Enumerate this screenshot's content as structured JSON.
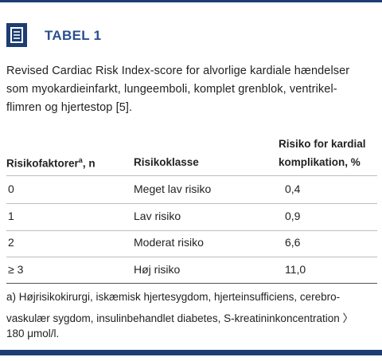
{
  "header": {
    "title": "TABEL 1"
  },
  "caption": [
    "Revised Cardiac Risk Index-score for alvorlige kardiale hændelser",
    "som myokardieinfarkt, lungeemboli, komplet grenblok, ventrikel-",
    "flimren og hjertestop [5]."
  ],
  "table": {
    "columns": [
      {
        "label": "Risikofaktorer",
        "sup": "a",
        "tail": ", n"
      },
      {
        "label": "Risikoklasse"
      },
      {
        "label": "Risiko for kardial",
        "label2": "komplikation, %"
      }
    ],
    "rows": [
      [
        "0",
        "Meget lav risiko",
        "0,4"
      ],
      [
        "1",
        "Lav risiko",
        "0,9"
      ],
      [
        "2",
        "Moderat risiko",
        "6,6"
      ],
      [
        "≥ 3",
        "Høj risiko",
        "11,0"
      ]
    ]
  },
  "footnote": [
    "a) Højrisikokirurgi, iskæmisk hjertesygdom, hjerteinsufficiens, cerebro-",
    "vaskulær sygdom, insulinbehandlet diabetes, S-kreatininkoncentration 〉",
    "180 μmol/l."
  ]
}
